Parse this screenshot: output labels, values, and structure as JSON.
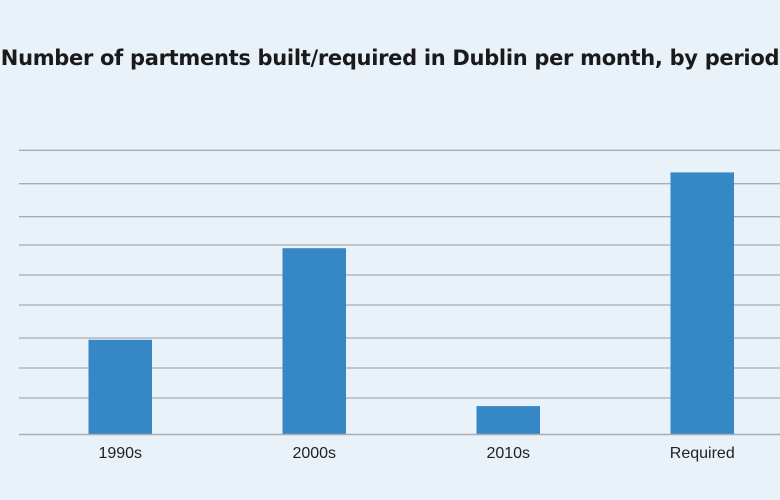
{
  "chart_data": {
    "type": "bar",
    "title": "Number of partments built/required in Dublin per month, by period",
    "xlabel": "",
    "ylabel": "",
    "categories": [
      "1990s",
      "2000s",
      "2010s",
      "Required"
    ],
    "values": [
      3.0,
      5.9,
      0.9,
      8.3
    ],
    "ylim": [
      0,
      9
    ],
    "grid": true,
    "legend": "none",
    "colors": {
      "bar": "#3587c6",
      "grid": "#a9adb3",
      "background": "#e9f1f9"
    }
  }
}
